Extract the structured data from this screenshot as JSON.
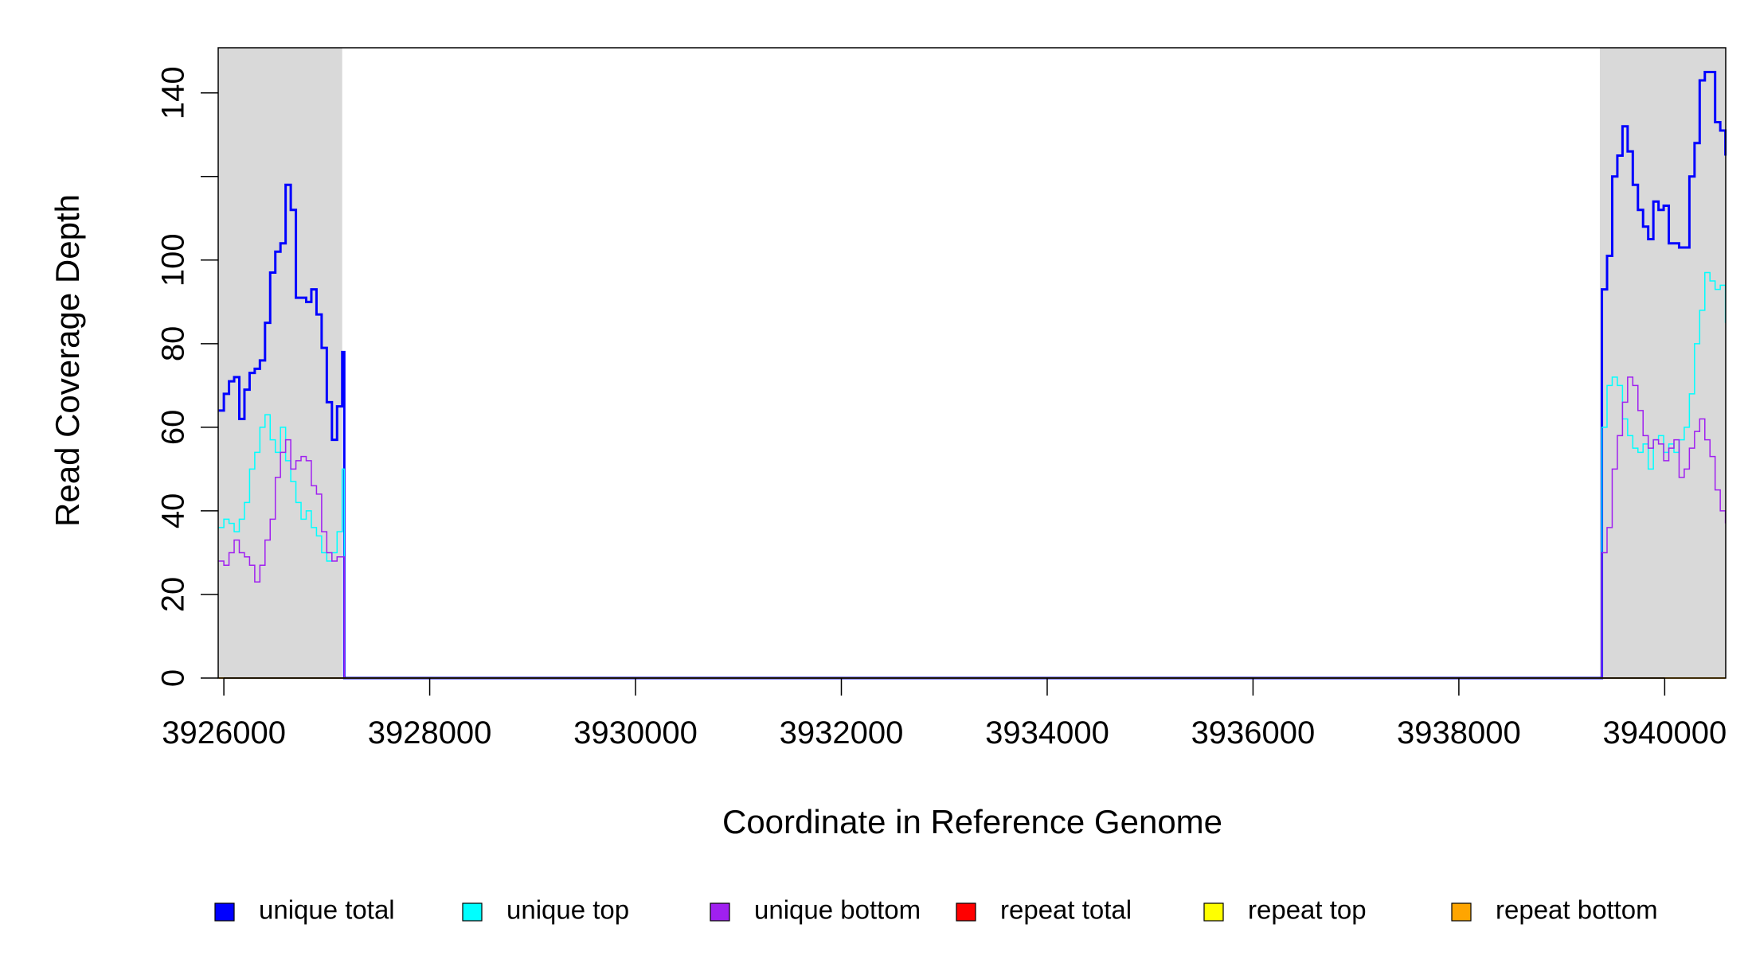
{
  "chart_data": {
    "type": "line",
    "xlabel": "Coordinate in Reference Genome",
    "ylabel": "Read Coverage Depth",
    "step": true,
    "xlim": [
      3925945,
      3940593
    ],
    "ylim": [
      0,
      150.8
    ],
    "xticks": [
      3926000,
      3928000,
      3930000,
      3932000,
      3934000,
      3936000,
      3938000,
      3940000
    ],
    "yticks": [
      0,
      20,
      40,
      60,
      80,
      100,
      {
        "value": 120,
        "label": null
      },
      140
    ],
    "shaded_regions": [
      [
        3925945,
        3927150
      ],
      [
        3939370,
        3940593
      ]
    ],
    "shade_color": "#d9d9d9",
    "legend": "bottom",
    "x": [
      3925950,
      3926000,
      3926050,
      3926100,
      3926150,
      3926200,
      3926250,
      3926300,
      3926350,
      3926400,
      3926450,
      3926500,
      3926550,
      3926600,
      3926650,
      3926700,
      3926750,
      3926800,
      3926850,
      3926900,
      3926950,
      3927000,
      3927050,
      3927100,
      3927150,
      3927170,
      3939390,
      3939440,
      3939490,
      3939540,
      3939590,
      3939640,
      3939690,
      3939740,
      3939790,
      3939840,
      3939890,
      3939940,
      3939990,
      3940040,
      3940090,
      3940140,
      3940190,
      3940240,
      3940290,
      3940340,
      3940390,
      3940440,
      3940490,
      3940540,
      3940590
    ],
    "series": [
      {
        "name": "unique total",
        "color": "#0000ff",
        "width": 3,
        "values": [
          64,
          68,
          71,
          72,
          62,
          69,
          73,
          74,
          76,
          85,
          97,
          102,
          104,
          118,
          112,
          91,
          91,
          90,
          93,
          87,
          79,
          66,
          57,
          65,
          78,
          0,
          93,
          101,
          120,
          125,
          132,
          126,
          118,
          112,
          108,
          105,
          114,
          112,
          113,
          104,
          104,
          103,
          103,
          120,
          128,
          143,
          145,
          145,
          133,
          131,
          125
        ]
      },
      {
        "name": "unique top",
        "color": "#00ffff",
        "width": 1.5,
        "values": [
          36,
          38,
          37,
          35,
          38,
          42,
          50,
          54,
          60,
          63,
          57,
          54,
          60,
          52,
          47,
          42,
          38,
          40,
          36,
          34,
          30,
          28,
          30,
          35,
          50,
          0,
          60,
          70,
          72,
          70,
          62,
          58,
          55,
          54,
          56,
          50,
          57,
          58,
          54,
          56,
          54,
          57,
          60,
          68,
          80,
          88,
          97,
          95,
          93,
          94,
          85
        ]
      },
      {
        "name": "unique bottom",
        "color": "#a020f0",
        "width": 1.5,
        "values": [
          28,
          27,
          30,
          33,
          30,
          29,
          27,
          23,
          27,
          33,
          38,
          48,
          54,
          57,
          50,
          52,
          53,
          52,
          46,
          44,
          35,
          30,
          28,
          29,
          29,
          0,
          30,
          36,
          50,
          58,
          66,
          72,
          70,
          64,
          58,
          55,
          57,
          56,
          52,
          55,
          57,
          48,
          50,
          55,
          59,
          62,
          57,
          53,
          45,
          40,
          37
        ]
      },
      {
        "name": "repeat total",
        "color": "#ff0000",
        "width": 1.5,
        "values": [
          0,
          0,
          0,
          0,
          0,
          0,
          0,
          0,
          0,
          0,
          0,
          0,
          0,
          0,
          0,
          0,
          0,
          0,
          0,
          0,
          0,
          0,
          0,
          0,
          0,
          0,
          0,
          0,
          0,
          0,
          0,
          0,
          0,
          0,
          0,
          0,
          0,
          0,
          0,
          0,
          0,
          0,
          0,
          0,
          0,
          0,
          0,
          0,
          0,
          0,
          0
        ]
      },
      {
        "name": "repeat top",
        "color": "#ffff00",
        "width": 1.5,
        "values": [
          0,
          0,
          0,
          0,
          0,
          0,
          0,
          0,
          0,
          0,
          0,
          0,
          0,
          0,
          0,
          0,
          0,
          0,
          0,
          0,
          0,
          0,
          0,
          0,
          0,
          0,
          0,
          0,
          0,
          0,
          0,
          0,
          0,
          0,
          0,
          0,
          0,
          0,
          0,
          0,
          0,
          0,
          0,
          0,
          0,
          0,
          0,
          0,
          0,
          0,
          0
        ]
      },
      {
        "name": "repeat bottom",
        "color": "#ffa500",
        "width": 1.5,
        "values": [
          0,
          0,
          0,
          0,
          0,
          0,
          0,
          0,
          0,
          0,
          0,
          0,
          0,
          0,
          0,
          0,
          0,
          0,
          0,
          0,
          0,
          0,
          0,
          0,
          0,
          0,
          0,
          0,
          0,
          0,
          0,
          0,
          0,
          0,
          0,
          0,
          0,
          0,
          0,
          0,
          0,
          0,
          0,
          0,
          0,
          0,
          0,
          0,
          0,
          0,
          0
        ]
      }
    ]
  }
}
